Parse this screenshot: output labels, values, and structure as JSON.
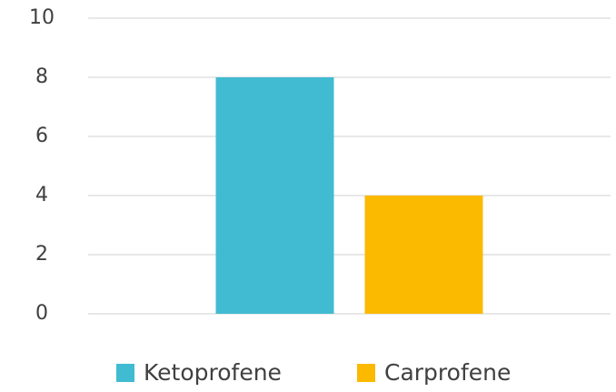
{
  "chart_data": {
    "type": "bar",
    "categories": [
      null
    ],
    "series": [
      {
        "name": "Ketoprofene",
        "color": "#41bbd2",
        "values": [
          8
        ]
      },
      {
        "name": "Carprofene",
        "color": "#fbb900",
        "values": [
          4
        ]
      }
    ],
    "ylim": [
      0,
      10
    ],
    "yticks": [
      0,
      2,
      4,
      6,
      8,
      10
    ],
    "grid": true,
    "legend": "bottom"
  }
}
